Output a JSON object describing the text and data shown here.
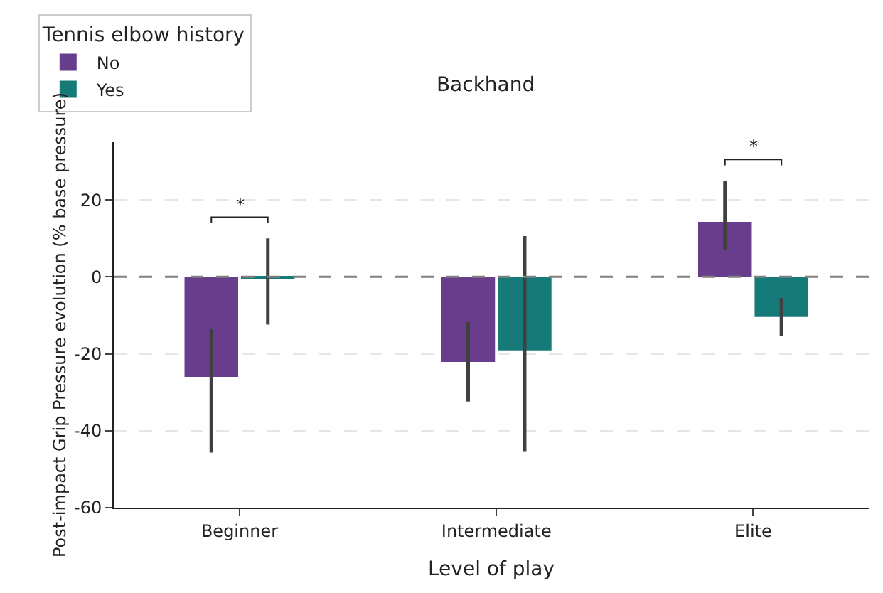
{
  "chart_data": {
    "type": "bar",
    "title": "Backhand",
    "xlabel": "Level of play",
    "ylabel": "Post-impact Grip Pressure evolution (% base pressure)",
    "legend_title": "Tennis elbow history",
    "categories": [
      "Beginner",
      "Intermediate",
      "Elite"
    ],
    "series": [
      {
        "name": "No",
        "color": "#673d8c",
        "values": [
          -26,
          -22.1,
          14.3
        ],
        "errors": [
          [
            -45.7,
            -13.6
          ],
          [
            -32.4,
            -11.8
          ],
          [
            6.9,
            25
          ]
        ]
      },
      {
        "name": "Yes",
        "color": "#167a78",
        "values": [
          -0.3,
          -19.1,
          -10.4
        ],
        "errors": [
          [
            -12.4,
            10
          ],
          [
            -45.3,
            10.6
          ],
          [
            -15.4,
            -5.5
          ]
        ]
      }
    ],
    "ylim": [
      -60,
      35
    ],
    "yticks": [
      -60,
      -40,
      -20,
      0,
      20
    ],
    "grid": "y",
    "legend": "top left",
    "ref_lines": [
      {
        "axis": "y",
        "value": 0,
        "color": "#808080",
        "line_style": "dashed"
      }
    ],
    "annotations": [
      "*",
      "*"
    ]
  }
}
